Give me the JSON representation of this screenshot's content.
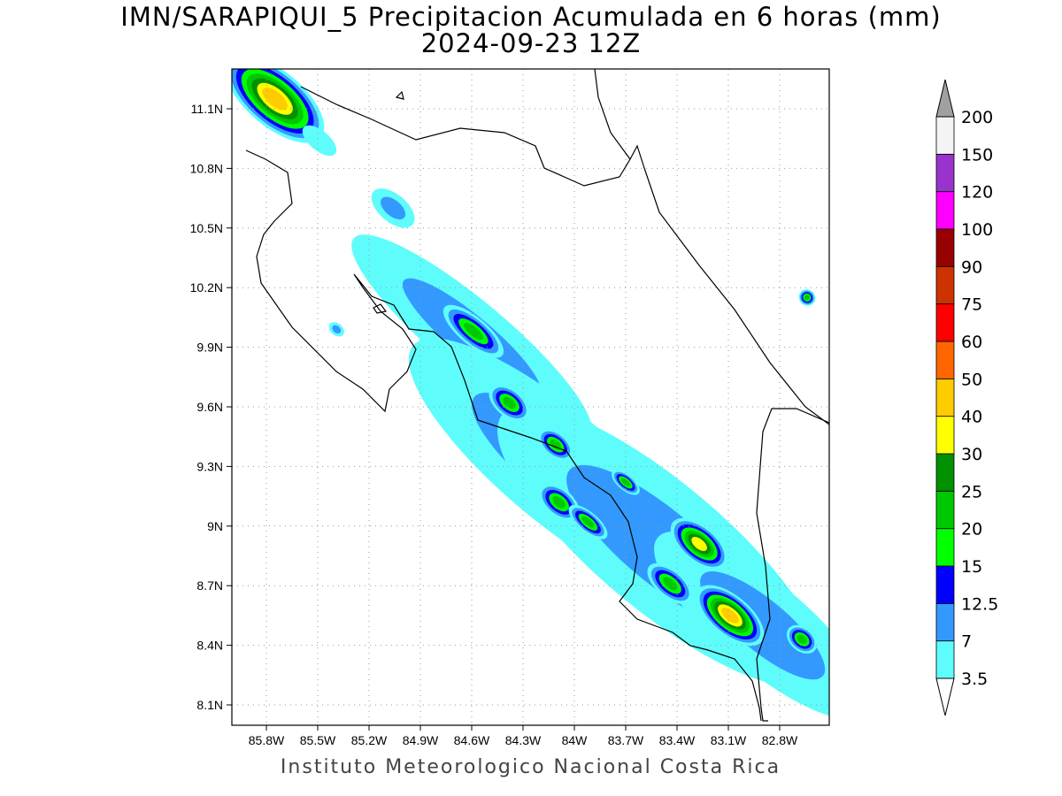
{
  "title": "IMN/SARAPIQUI_5 Precipitacion Acumulada en 6 horas (mm)",
  "subtitle": "2024-09-23 12Z",
  "footer": "Instituto Meteorologico Nacional Costa Rica",
  "chart_data": {
    "type": "heatmap",
    "variable": "6-hour accumulated precipitation (mm)",
    "lon_range": [
      -86.0,
      -82.5
    ],
    "lat_range": [
      8.0,
      11.3
    ],
    "x_ticks": [
      "85.8W",
      "85.5W",
      "85.2W",
      "84.9W",
      "84.6W",
      "84.3W",
      "84W",
      "83.7W",
      "83.4W",
      "83.1W",
      "82.8W"
    ],
    "x_tick_values": [
      -85.8,
      -85.5,
      -85.2,
      -84.9,
      -84.6,
      -84.3,
      -84.0,
      -83.7,
      -83.4,
      -83.1,
      -82.8
    ],
    "y_ticks": [
      "11.1N",
      "10.8N",
      "10.5N",
      "10.2N",
      "9.9N",
      "9.6N",
      "9.3N",
      "9N",
      "8.7N",
      "8.4N",
      "8.1N"
    ],
    "y_tick_values": [
      11.1,
      10.8,
      10.5,
      10.2,
      9.9,
      9.6,
      9.3,
      9.0,
      8.7,
      8.4,
      8.1
    ],
    "grid": true,
    "legend_placement": "right",
    "levels": [
      "3.5",
      "7",
      "12.5",
      "15",
      "20",
      "25",
      "30",
      "40",
      "50",
      "60",
      "75",
      "90",
      "100",
      "120",
      "150",
      "200"
    ],
    "colors": [
      "#5ffcfc",
      "#3399ff",
      "#0000ff",
      "#00ff00",
      "#00c800",
      "#009000",
      "#ffff00",
      "#ffcc00",
      "#ff6600",
      "#ff0000",
      "#cc3300",
      "#990000",
      "#ff00ff",
      "#9933cc",
      "#f4f4f4",
      "#a0a0a0"
    ],
    "below_color": "#ffffff",
    "cells_note": "precipitation maxima: lon, lat, extent (deg along/across band), max level index",
    "cells": [
      {
        "lon": -84.6,
        "lat": 9.95,
        "a": 0.9,
        "b": 0.18,
        "max": 1
      },
      {
        "lon": -84.1,
        "lat": 9.3,
        "a": 1.1,
        "b": 0.28,
        "max": 1
      },
      {
        "lon": -83.5,
        "lat": 8.9,
        "a": 1.2,
        "b": 0.32,
        "max": 1
      },
      {
        "lon": -82.9,
        "lat": 8.5,
        "a": 0.8,
        "b": 0.22,
        "max": 1
      },
      {
        "lon": -85.75,
        "lat": 11.15,
        "a": 0.35,
        "b": 0.14,
        "max": 7
      },
      {
        "lon": -85.49,
        "lat": 10.94,
        "a": 0.12,
        "b": 0.05,
        "max": 0
      },
      {
        "lon": -85.06,
        "lat": 10.6,
        "a": 0.15,
        "b": 0.07,
        "max": 1
      },
      {
        "lon": -84.59,
        "lat": 9.98,
        "a": 0.22,
        "b": 0.07,
        "max": 4
      },
      {
        "lon": -84.38,
        "lat": 9.62,
        "a": 0.14,
        "b": 0.07,
        "max": 4
      },
      {
        "lon": -84.11,
        "lat": 9.41,
        "a": 0.12,
        "b": 0.06,
        "max": 4
      },
      {
        "lon": -84.09,
        "lat": 9.12,
        "a": 0.14,
        "b": 0.07,
        "max": 4
      },
      {
        "lon": -83.92,
        "lat": 9.02,
        "a": 0.14,
        "b": 0.05,
        "max": 4
      },
      {
        "lon": -83.7,
        "lat": 9.22,
        "a": 0.1,
        "b": 0.04,
        "max": 4
      },
      {
        "lon": -83.27,
        "lat": 8.91,
        "a": 0.2,
        "b": 0.09,
        "max": 6
      },
      {
        "lon": -83.44,
        "lat": 8.71,
        "a": 0.16,
        "b": 0.07,
        "max": 4
      },
      {
        "lon": -83.09,
        "lat": 8.55,
        "a": 0.24,
        "b": 0.1,
        "max": 7
      },
      {
        "lon": -82.67,
        "lat": 8.43,
        "a": 0.1,
        "b": 0.06,
        "max": 4
      },
      {
        "lon": -82.64,
        "lat": 10.15,
        "a": 0.05,
        "b": 0.04,
        "max": 4
      },
      {
        "lon": -85.39,
        "lat": 9.99,
        "a": 0.05,
        "b": 0.03,
        "max": 1
      }
    ]
  }
}
